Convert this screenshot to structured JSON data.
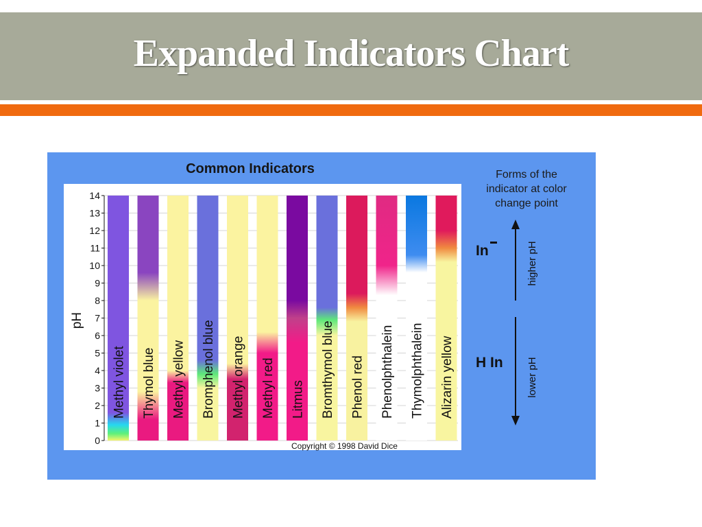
{
  "slide": {
    "title": "Expanded Indicators Chart",
    "colors": {
      "title_bar": "#a7aa99",
      "accent_bar": "#f06a0f",
      "panel": "#5c96ef",
      "plot_bg": "#ffffff"
    }
  },
  "side": {
    "forms_text": "Forms of the\nindicator at color\nchange point",
    "in_label": "In",
    "hin_label": "H In",
    "higher_ph": "higher pH",
    "lower_ph": "lower pH"
  },
  "chart_data": {
    "type": "table",
    "title": "Common Indicators",
    "ylabel": "pH",
    "ylim": [
      0,
      14
    ],
    "yticks": [
      "0",
      "1",
      "2",
      "3",
      "4",
      "5",
      "6",
      "7",
      "8",
      "9",
      "10",
      "11",
      "12",
      "13",
      "14"
    ],
    "copyright": "Copyright © 1998 David Dice",
    "indicators": [
      {
        "name": "Methyl violet",
        "range": [
          0.0,
          1.6
        ],
        "stops": [
          [
            0,
            "#f5f56a"
          ],
          [
            0.4,
            "#5ef07a"
          ],
          [
            0.9,
            "#25d7f0"
          ],
          [
            1.6,
            "#7f55e0"
          ],
          [
            14,
            "#7f55e0"
          ]
        ]
      },
      {
        "name": "Thymol blue",
        "range": [
          1.2,
          2.8
        ],
        "stops": [
          [
            0,
            "#ea1a80"
          ],
          [
            1.2,
            "#ea1a80"
          ],
          [
            2.8,
            "#fbf3a0"
          ],
          [
            8.0,
            "#fbf3a0"
          ],
          [
            9.6,
            "#8a45c0"
          ],
          [
            14,
            "#8a45c0"
          ]
        ]
      },
      {
        "name": "Methyl yellow",
        "range": [
          2.9,
          4.0
        ],
        "stops": [
          [
            0,
            "#ea1a80"
          ],
          [
            3.3,
            "#ea1a80"
          ],
          [
            4.0,
            "#fbf3a0"
          ],
          [
            14,
            "#fbf3a0"
          ]
        ]
      },
      {
        "name": "Bromphenol blue",
        "range": [
          3.0,
          4.6
        ],
        "stops": [
          [
            0,
            "#f8f5a0"
          ],
          [
            3.0,
            "#f8f5a0"
          ],
          [
            3.8,
            "#5ee87a"
          ],
          [
            4.6,
            "#6a70dc"
          ],
          [
            14,
            "#6a70dc"
          ]
        ]
      },
      {
        "name": "Methyl orange",
        "range": [
          3.1,
          4.4
        ],
        "stops": [
          [
            0,
            "#d2236e"
          ],
          [
            3.5,
            "#d2236e"
          ],
          [
            4.4,
            "#fbf3a0"
          ],
          [
            14,
            "#fbf3a0"
          ]
        ]
      },
      {
        "name": "Methyl red",
        "range": [
          4.4,
          6.2
        ],
        "stops": [
          [
            0,
            "#f21b88"
          ],
          [
            5.0,
            "#f21b88"
          ],
          [
            6.2,
            "#fbf3a0"
          ],
          [
            14,
            "#fbf3a0"
          ]
        ]
      },
      {
        "name": "Litmus",
        "range": [
          5.0,
          8.0
        ],
        "stops": [
          [
            0,
            "#f21b88"
          ],
          [
            5.6,
            "#f21b88"
          ],
          [
            7.0,
            "#c0408a"
          ],
          [
            8.0,
            "#7a0aa0"
          ],
          [
            14,
            "#7a0aa0"
          ]
        ]
      },
      {
        "name": "Bromthymol blue",
        "range": [
          6.0,
          7.6
        ],
        "stops": [
          [
            0,
            "#f8f5a0"
          ],
          [
            6.0,
            "#f8f5a0"
          ],
          [
            6.9,
            "#5ee87a"
          ],
          [
            7.6,
            "#6a70dc"
          ],
          [
            14,
            "#6a70dc"
          ]
        ]
      },
      {
        "name": "Phenol red",
        "range": [
          6.8,
          8.4
        ],
        "stops": [
          [
            0,
            "#f8f2a0"
          ],
          [
            6.8,
            "#f8f2a0"
          ],
          [
            7.6,
            "#f08a40"
          ],
          [
            8.4,
            "#dc1a5c"
          ],
          [
            14,
            "#dc1a5c"
          ]
        ]
      },
      {
        "name": "Phenolphthalein",
        "range": [
          8.2,
          10.0
        ],
        "stops": [
          [
            0,
            "#ffffff"
          ],
          [
            8.3,
            "#ffffff"
          ],
          [
            10.0,
            "#f0248a"
          ],
          [
            14,
            "#e02a82"
          ]
        ]
      },
      {
        "name": "Thymolphthalein",
        "range": [
          9.4,
          10.6
        ],
        "stops": [
          [
            0,
            "#ffffff"
          ],
          [
            9.6,
            "#ffffff"
          ],
          [
            10.6,
            "#3e8cf0"
          ],
          [
            14,
            "#0a78e0"
          ]
        ]
      },
      {
        "name": "Alizarin yellow",
        "range": [
          10.1,
          12.0
        ],
        "stops": [
          [
            0,
            "#f8f5a0"
          ],
          [
            10.2,
            "#f8f5a0"
          ],
          [
            11.0,
            "#f08a40"
          ],
          [
            12.0,
            "#e01a5c"
          ],
          [
            14,
            "#e01a5c"
          ]
        ]
      }
    ]
  }
}
